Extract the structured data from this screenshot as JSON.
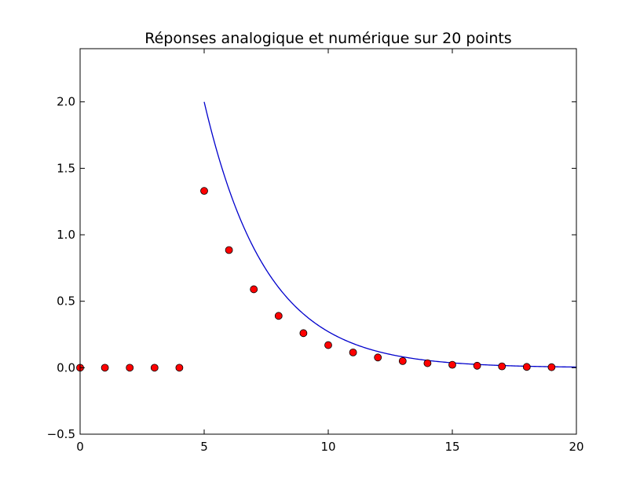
{
  "chart_data": {
    "type": "line",
    "title": "Réponses analogique et numérique sur 20 points",
    "xlabel": "",
    "ylabel": "",
    "xlim": [
      0,
      20
    ],
    "ylim": [
      -0.5,
      2.4
    ],
    "x_ticks": [
      0,
      5,
      10,
      15,
      20
    ],
    "x_tick_labels": [
      "0",
      "5",
      "10",
      "15",
      "20"
    ],
    "y_ticks": [
      -0.5,
      0.0,
      0.5,
      1.0,
      1.5,
      2.0
    ],
    "y_tick_labels": [
      "−0.5",
      "0.0",
      "0.5",
      "1.0",
      "1.5",
      "2.0"
    ],
    "grid": false,
    "series": [
      {
        "kind": "line",
        "color": "#0000cc",
        "x_start": 5,
        "x_end": 20,
        "x": [
          5,
          5.5,
          6,
          6.5,
          7,
          7.5,
          8,
          8.5,
          9,
          9.5,
          10,
          10.5,
          11,
          11.5,
          12,
          12.5,
          13,
          13.5,
          14,
          14.5,
          15,
          15.5,
          16,
          16.5,
          17,
          17.5,
          18,
          18.5,
          19,
          19.5,
          20
        ],
        "y": [
          2.0,
          1.6,
          1.33,
          1.09,
          0.89,
          0.73,
          0.6,
          0.49,
          0.4,
          0.33,
          0.27,
          0.22,
          0.18,
          0.148,
          0.121,
          0.1,
          0.081,
          0.066,
          0.054,
          0.045,
          0.037,
          0.03,
          0.024,
          0.02,
          0.016,
          0.013,
          0.011,
          0.009,
          0.007,
          0.006,
          0.005
        ]
      },
      {
        "kind": "markers",
        "color": "#ff0000",
        "x": [
          0,
          1,
          2,
          3,
          4,
          5,
          6,
          7,
          8,
          9,
          10,
          11,
          12,
          13,
          14,
          15,
          16,
          17,
          18,
          19
        ],
        "y": [
          0,
          0,
          0,
          0,
          0,
          1.33,
          0.885,
          0.59,
          0.39,
          0.26,
          0.17,
          0.115,
          0.077,
          0.05,
          0.034,
          0.022,
          0.015,
          0.01,
          0.006,
          0.004
        ]
      }
    ]
  }
}
